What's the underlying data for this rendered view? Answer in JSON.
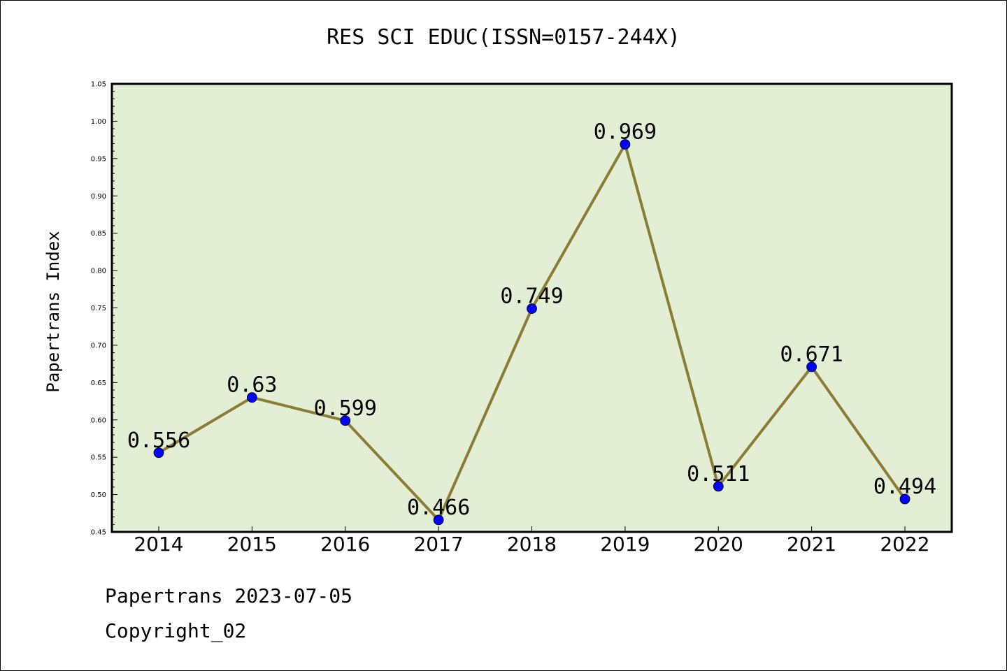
{
  "chart_data": {
    "type": "line",
    "title": "RES SCI EDUC(ISSN=0157-244X)",
    "xlabel": "",
    "ylabel": "Papertrans Index",
    "categories": [
      "2014",
      "2015",
      "2016",
      "2017",
      "2018",
      "2019",
      "2020",
      "2021",
      "2022"
    ],
    "series": [
      {
        "values": [
          0.556,
          0.63,
          0.599,
          0.466,
          0.749,
          0.969,
          0.511,
          0.671,
          0.494
        ],
        "data_labels": [
          "0.556",
          "0.63",
          "0.599",
          "0.466",
          "0.749",
          "0.969",
          "0.511",
          "0.671",
          "0.494"
        ]
      }
    ],
    "ylim": [
      0.45,
      1.05
    ],
    "yticks": [
      "0.45",
      "0.50",
      "0.55",
      "0.60",
      "0.65",
      "0.70",
      "0.75",
      "0.80",
      "0.85",
      "0.90",
      "0.95",
      "1.00",
      "1.05"
    ],
    "grid": false,
    "legend": "none"
  },
  "footer": {
    "line1": "Papertrans 2023-07-05",
    "line2": "Copyright_02"
  },
  "colors": {
    "plot_background": "#e2efd5",
    "line": "#8b7d35",
    "marker": "#0000ff",
    "axis": "#000000"
  }
}
